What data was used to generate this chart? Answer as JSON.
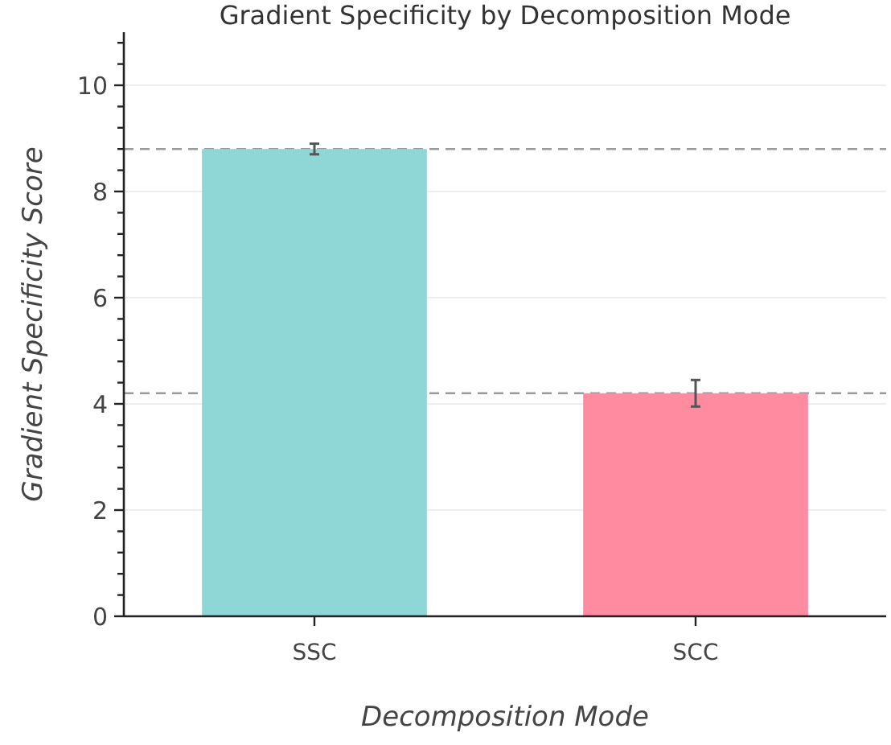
{
  "chart_data": {
    "type": "bar",
    "title": "Gradient Specificity by Decomposition Mode",
    "xlabel": "Decomposition Mode",
    "ylabel": "Gradient Specificity Score",
    "categories": [
      "SSC",
      "SCC"
    ],
    "values": [
      8.8,
      4.2
    ],
    "errors": [
      0.1,
      0.25
    ],
    "colors": [
      "#8fd6d6",
      "#ff8ba0"
    ],
    "ylim": [
      0,
      11
    ],
    "yticks": [
      0,
      {
        "value": 0.4,
        "label": null
      },
      {
        "value": 0.8,
        "label": null
      },
      {
        "value": 1.2,
        "label": null
      },
      {
        "value": 1.6,
        "label": null
      },
      2,
      {
        "value": 2.4,
        "label": null
      },
      {
        "value": 2.8,
        "label": null
      },
      {
        "value": 3.2,
        "label": null
      },
      {
        "value": 3.6,
        "label": null
      },
      4,
      {
        "value": 4.4,
        "label": null
      },
      {
        "value": 4.8,
        "label": null
      },
      {
        "value": 5.2,
        "label": null
      },
      {
        "value": 5.6,
        "label": null
      },
      6,
      {
        "value": 6.4,
        "label": null
      },
      {
        "value": 6.8,
        "label": null
      },
      {
        "value": 7.2,
        "label": null
      },
      {
        "value": 7.6,
        "label": null
      },
      8,
      {
        "value": 8.4,
        "label": null
      },
      {
        "value": 8.8,
        "label": null
      },
      {
        "value": 9.2,
        "label": null
      },
      {
        "value": 9.6,
        "label": null
      },
      10,
      {
        "value": 10.4,
        "label": null
      },
      {
        "value": 10.8,
        "label": null
      }
    ],
    "grid": "y",
    "ref_lines": [
      {
        "axis": "y",
        "value": 8.8,
        "color": "#999999",
        "line_style": "dashed"
      },
      {
        "axis": "y",
        "value": 4.2,
        "color": "#999999",
        "line_style": "dashed"
      }
    ]
  }
}
